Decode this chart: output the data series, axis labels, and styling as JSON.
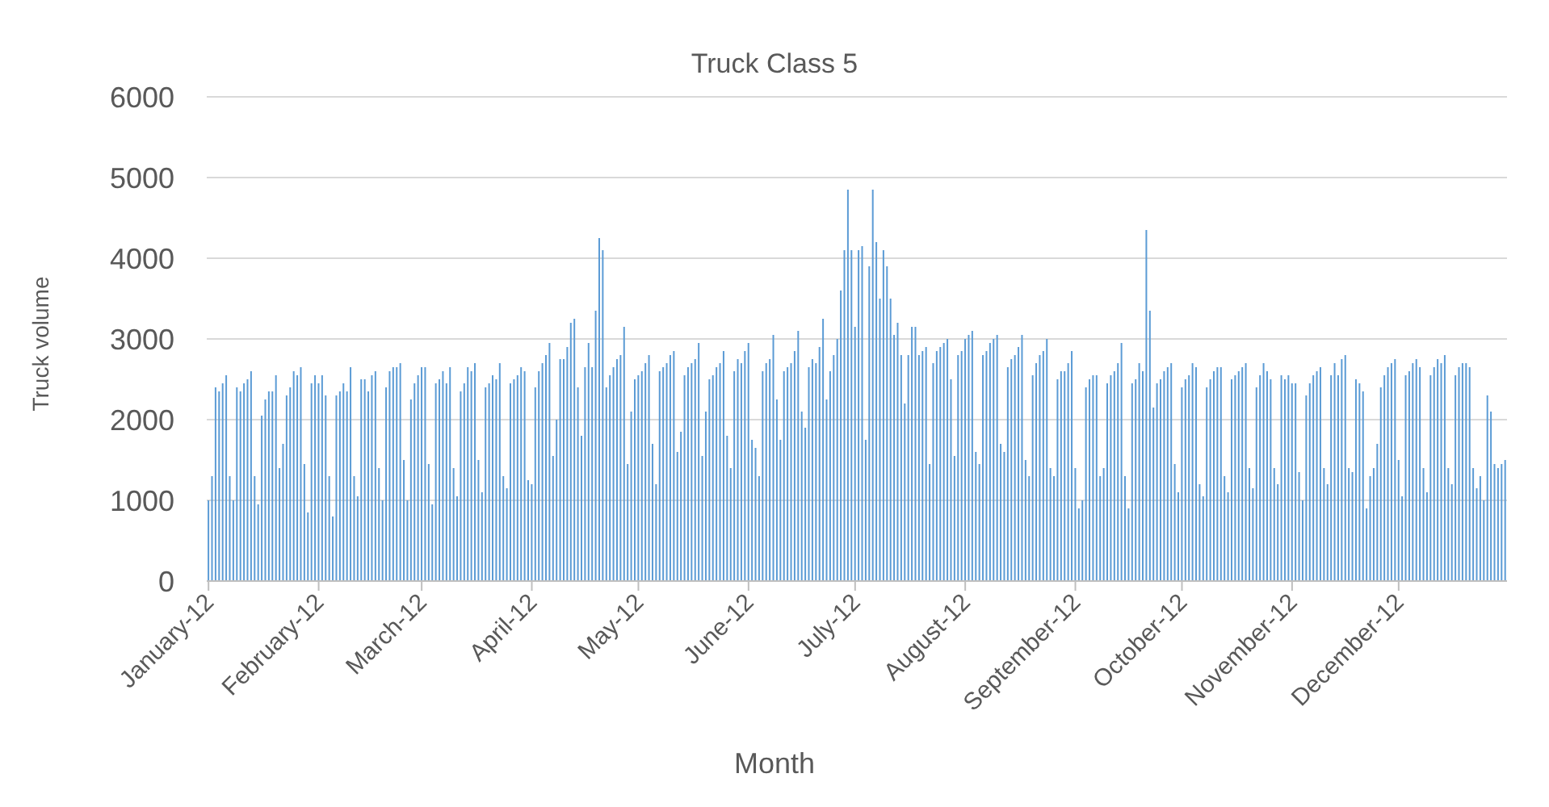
{
  "chart_data": {
    "type": "bar",
    "title": "Truck Class 5",
    "xlabel": "Month",
    "ylabel": "Truck volume",
    "categories": [
      "January-12",
      null,
      null,
      null,
      null,
      null,
      null,
      null,
      null,
      null,
      null,
      null,
      null,
      null,
      null,
      null,
      null,
      null,
      null,
      null,
      null,
      null,
      null,
      null,
      null,
      null,
      null,
      null,
      null,
      null,
      null,
      "February-12",
      null,
      null,
      null,
      null,
      null,
      null,
      null,
      null,
      null,
      null,
      null,
      null,
      null,
      null,
      null,
      null,
      null,
      null,
      null,
      null,
      null,
      null,
      null,
      null,
      null,
      null,
      null,
      null,
      "March-12",
      null,
      null,
      null,
      null,
      null,
      null,
      null,
      null,
      null,
      null,
      null,
      null,
      null,
      null,
      null,
      null,
      null,
      null,
      null,
      null,
      null,
      null,
      null,
      null,
      null,
      null,
      null,
      null,
      null,
      null,
      "April-12",
      null,
      null,
      null,
      null,
      null,
      null,
      null,
      null,
      null,
      null,
      null,
      null,
      null,
      null,
      null,
      null,
      null,
      null,
      null,
      null,
      null,
      null,
      null,
      null,
      null,
      null,
      null,
      null,
      null,
      "May-12",
      null,
      null,
      null,
      null,
      null,
      null,
      null,
      null,
      null,
      null,
      null,
      null,
      null,
      null,
      null,
      null,
      null,
      null,
      null,
      null,
      null,
      null,
      null,
      null,
      null,
      null,
      null,
      null,
      null,
      null,
      "June-12",
      null,
      null,
      null,
      null,
      null,
      null,
      null,
      null,
      null,
      null,
      null,
      null,
      null,
      null,
      null,
      null,
      null,
      null,
      null,
      null,
      null,
      null,
      null,
      null,
      null,
      null,
      null,
      null,
      null,
      "July-12",
      null,
      null,
      null,
      null,
      null,
      null,
      null,
      null,
      null,
      null,
      null,
      null,
      null,
      null,
      null,
      null,
      null,
      null,
      null,
      null,
      null,
      null,
      null,
      null,
      null,
      null,
      null,
      null,
      null,
      null,
      "August-12",
      null,
      null,
      null,
      null,
      null,
      null,
      null,
      null,
      null,
      null,
      null,
      null,
      null,
      null,
      null,
      null,
      null,
      null,
      null,
      null,
      null,
      null,
      null,
      null,
      null,
      null,
      null,
      null,
      null,
      null,
      "September-12",
      null,
      null,
      null,
      null,
      null,
      null,
      null,
      null,
      null,
      null,
      null,
      null,
      null,
      null,
      null,
      null,
      null,
      null,
      null,
      null,
      null,
      null,
      null,
      null,
      null,
      null,
      null,
      null,
      null,
      "October-12",
      null,
      null,
      null,
      null,
      null,
      null,
      null,
      null,
      null,
      null,
      null,
      null,
      null,
      null,
      null,
      null,
      null,
      null,
      null,
      null,
      null,
      null,
      null,
      null,
      null,
      null,
      null,
      null,
      null,
      null,
      "November-12",
      null,
      null,
      null,
      null,
      null,
      null,
      null,
      null,
      null,
      null,
      null,
      null,
      null,
      null,
      null,
      null,
      null,
      null,
      null,
      null,
      null,
      null,
      null,
      null,
      null,
      null,
      null,
      null,
      null,
      "December-12",
      null,
      null,
      null,
      null,
      null,
      null,
      null,
      null,
      null,
      null,
      null,
      null,
      null,
      null,
      null,
      null,
      null,
      null,
      null,
      null,
      null,
      null,
      null,
      null,
      null,
      null,
      null,
      null,
      null,
      null
    ],
    "values": [
      1000,
      1300,
      2400,
      2350,
      2450,
      2550,
      1300,
      1000,
      2400,
      2350,
      2450,
      2500,
      2600,
      1300,
      950,
      2050,
      2250,
      2350,
      2350,
      2550,
      1400,
      1700,
      2300,
      2400,
      2600,
      2550,
      2650,
      1450,
      850,
      2450,
      2550,
      2450,
      2550,
      2300,
      1300,
      800,
      2300,
      2350,
      2450,
      2350,
      2650,
      1300,
      1050,
      2500,
      2500,
      2350,
      2550,
      2600,
      1400,
      1000,
      2400,
      2600,
      2650,
      2650,
      2700,
      1500,
      1000,
      2250,
      2450,
      2550,
      2650,
      2650,
      1450,
      950,
      2450,
      2500,
      2600,
      2450,
      2650,
      1400,
      1050,
      2350,
      2450,
      2650,
      2600,
      2700,
      1500,
      1100,
      2400,
      2450,
      2550,
      2500,
      2700,
      1300,
      1150,
      2450,
      2500,
      2550,
      2650,
      2600,
      1250,
      1200,
      2400,
      2600,
      2700,
      2800,
      2950,
      1550,
      2000,
      2750,
      2750,
      2900,
      3200,
      3250,
      2400,
      1800,
      2650,
      2950,
      2650,
      3350,
      4250,
      4100,
      2400,
      2550,
      2650,
      2750,
      2800,
      3150,
      1450,
      2100,
      2500,
      2550,
      2600,
      2700,
      2800,
      1700,
      1200,
      2600,
      2650,
      2700,
      2800,
      2850,
      1600,
      1850,
      2550,
      2650,
      2700,
      2750,
      2950,
      1550,
      2100,
      2500,
      2550,
      2650,
      2700,
      2850,
      1800,
      1400,
      2600,
      2750,
      2700,
      2850,
      2950,
      1750,
      1650,
      1300,
      2600,
      2700,
      2750,
      3050,
      2250,
      1750,
      2600,
      2650,
      2700,
      2850,
      3100,
      2100,
      1900,
      2650,
      2750,
      2700,
      2900,
      3250,
      2250,
      2600,
      2800,
      3000,
      3600,
      4100,
      4850,
      4100,
      3150,
      4100,
      4150,
      1750,
      3900,
      4850,
      4200,
      3500,
      4100,
      3900,
      3500,
      3050,
      3200,
      2800,
      2200,
      2800,
      3150,
      3150,
      2800,
      2850,
      2900,
      1450,
      2700,
      2850,
      2900,
      2950,
      3000,
      2500,
      1550,
      2800,
      2850,
      3000,
      3050,
      3100,
      1600,
      1450,
      2800,
      2850,
      2950,
      3000,
      3050,
      1700,
      1600,
      2650,
      2750,
      2800,
      2900,
      3050,
      1500,
      1300,
      2550,
      2700,
      2800,
      2850,
      3000,
      1400,
      1300,
      2500,
      2600,
      2600,
      2700,
      2850,
      1400,
      900,
      1000,
      2400,
      2500,
      2550,
      2550,
      1300,
      1400,
      2450,
      2550,
      2600,
      2700,
      2950,
      1300,
      900,
      2450,
      2500,
      2700,
      2600,
      4350,
      3350,
      2150,
      2450,
      2500,
      2600,
      2650,
      2700,
      1450,
      1100,
      2400,
      2500,
      2550,
      2700,
      2650,
      1200,
      1050,
      2400,
      2500,
      2600,
      2650,
      2650,
      1300,
      1100,
      2500,
      2550,
      2600,
      2650,
      2700,
      1400,
      1150,
      2400,
      2550,
      2700,
      2600,
      2500,
      1400,
      1200,
      2550,
      2500,
      2550,
      2450,
      2450,
      1350,
      1000,
      2300,
      2450,
      2550,
      2600,
      2650,
      1400,
      1200,
      2550,
      2700,
      2550,
      2750,
      2800,
      1400,
      1350,
      2500,
      2450,
      2350,
      900,
      1300,
      1400,
      1700,
      2400,
      2550,
      2650,
      2700,
      2750,
      1500,
      1050,
      2550,
      2600,
      2700,
      2750,
      2650,
      1400,
      1100,
      2550,
      2650,
      2750,
      2700,
      2800,
      1400,
      1200,
      2550,
      2650,
      2700,
      2700,
      2650,
      1400,
      1150,
      1300,
      1000,
      2300,
      2100,
      1450,
      1400,
      1450,
      1500
    ],
    "color": "#5b9bd5",
    "ylim": [
      0,
      6000
    ],
    "yticks": [
      0,
      1000,
      2000,
      3000,
      4000,
      5000,
      6000
    ],
    "grid": "y"
  }
}
